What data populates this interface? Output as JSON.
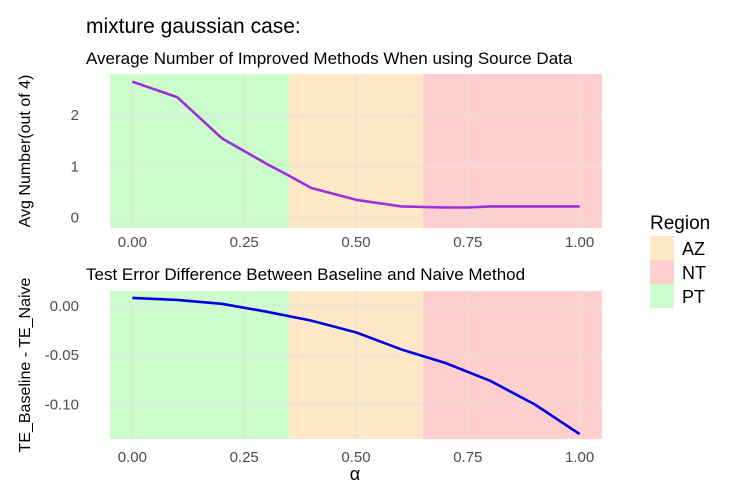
{
  "title": "mixture gaussian case:",
  "legend": {
    "title": "Region",
    "placement": "right",
    "items": [
      {
        "label": "AZ",
        "color": "#FFE8C8"
      },
      {
        "label": "NT",
        "color": "#FFCFCF"
      },
      {
        "label": "PT",
        "color": "#CCFCCC"
      }
    ]
  },
  "chart_data": [
    {
      "type": "line",
      "title": "Average Number of Improved Methods When using Source Data",
      "xlabel": "",
      "ylabel": "Avg Number(out of 4)",
      "xlim": [
        -0.05,
        1.05
      ],
      "ylim": [
        -0.2,
        2.8
      ],
      "x_ticks": [
        0.0,
        0.25,
        0.5,
        0.75,
        1.0
      ],
      "x_tick_labels": [
        "0.00",
        "0.25",
        "0.50",
        "0.75",
        "1.00"
      ],
      "y_ticks": [
        0,
        1,
        2
      ],
      "y_tick_labels": [
        "0",
        "1",
        "2"
      ],
      "grid": true,
      "regions": [
        {
          "name": "PT",
          "from": -0.05,
          "to": 0.35,
          "color": "#CCFCCC"
        },
        {
          "name": "AZ",
          "from": 0.35,
          "to": 0.65,
          "color": "#FFE8C8"
        },
        {
          "name": "NT",
          "from": 0.65,
          "to": 1.05,
          "color": "#FFCFCF"
        }
      ],
      "series": [
        {
          "color": "#9B30D9",
          "x": [
            0.0,
            0.1,
            0.2,
            0.3,
            0.35,
            0.4,
            0.5,
            0.6,
            0.7,
            0.75,
            0.8,
            0.9,
            1.0
          ],
          "y": [
            2.65,
            2.35,
            1.55,
            1.05,
            0.82,
            0.58,
            0.35,
            0.22,
            0.2,
            0.2,
            0.22,
            0.22,
            0.22
          ]
        }
      ]
    },
    {
      "type": "line",
      "title": "Test Error Difference Between Baseline and Naive Method",
      "xlabel": "α",
      "ylabel": "TE_Baseline - TE_Naive",
      "xlim": [
        -0.05,
        1.05
      ],
      "ylim": [
        -0.135,
        0.015
      ],
      "x_ticks": [
        0.0,
        0.25,
        0.5,
        0.75,
        1.0
      ],
      "x_tick_labels": [
        "0.00",
        "0.25",
        "0.50",
        "0.75",
        "1.00"
      ],
      "y_ticks": [
        0.0,
        -0.05,
        -0.1
      ],
      "y_tick_labels": [
        "0.00",
        "-0.05",
        "-0.10"
      ],
      "grid": true,
      "regions": [
        {
          "name": "PT",
          "from": -0.05,
          "to": 0.35,
          "color": "#CCFCCC"
        },
        {
          "name": "AZ",
          "from": 0.35,
          "to": 0.65,
          "color": "#FFE8C8"
        },
        {
          "name": "NT",
          "from": 0.65,
          "to": 1.05,
          "color": "#FFCFCF"
        }
      ],
      "series": [
        {
          "color": "#0000E0",
          "x": [
            0.0,
            0.1,
            0.2,
            0.3,
            0.4,
            0.5,
            0.6,
            0.7,
            0.8,
            0.9,
            1.0
          ],
          "y": [
            0.008,
            0.006,
            0.002,
            -0.006,
            -0.015,
            -0.027,
            -0.044,
            -0.058,
            -0.076,
            -0.1,
            -0.13
          ]
        }
      ]
    }
  ]
}
